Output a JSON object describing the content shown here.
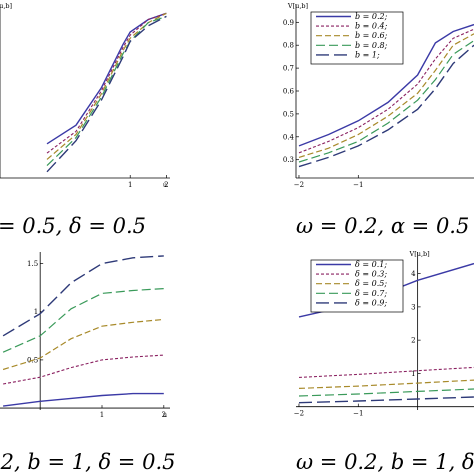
{
  "captions": [
    "= 0.5, δ = 0.5",
    "ω = 0.2, α = 0.5",
    ".2, b = 1, δ = 0.5",
    "ω = 0.2, b = 1, δ"
  ],
  "colors": {
    "s1": "#3b3aa6",
    "s2": "#8a2060",
    "s3": "#a88a2a",
    "s4": "#3a9a5a",
    "s5": "#2e3a78"
  },
  "chart_data": [
    {
      "type": "line",
      "ylabel": "V[u,b]",
      "xlabel": "u",
      "xlim": [
        -2.6,
        2.1
      ],
      "ylim": [
        0.36,
        0.92
      ],
      "xticks": [
        1,
        2
      ],
      "yticks": [],
      "legend": null,
      "series": [
        {
          "x": [
            -1.3,
            -0.5,
            0.2,
            0.8,
            1.0,
            1.5,
            2.0
          ],
          "y": [
            0.47,
            0.53,
            0.65,
            0.79,
            0.83,
            0.87,
            0.89
          ]
        },
        {
          "x": [
            -1.3,
            -0.5,
            0.2,
            0.8,
            1.0,
            1.5,
            2.0
          ],
          "y": [
            0.44,
            0.51,
            0.64,
            0.78,
            0.82,
            0.87,
            0.89
          ]
        },
        {
          "x": [
            -1.3,
            -0.5,
            0.2,
            0.8,
            1.0,
            1.5,
            2.0
          ],
          "y": [
            0.42,
            0.5,
            0.63,
            0.77,
            0.81,
            0.86,
            0.89
          ]
        },
        {
          "x": [
            -1.3,
            -0.5,
            0.2,
            0.8,
            1.0,
            1.5,
            2.0
          ],
          "y": [
            0.4,
            0.49,
            0.62,
            0.76,
            0.8,
            0.86,
            0.88
          ]
        },
        {
          "x": [
            -1.3,
            -0.5,
            0.2,
            0.8,
            1.0,
            1.5,
            2.0
          ],
          "y": [
            0.38,
            0.48,
            0.61,
            0.75,
            0.8,
            0.85,
            0.88
          ]
        }
      ]
    },
    {
      "type": "line",
      "ylabel": "V[u,b]",
      "xlabel": "",
      "xlim": [
        -2.05,
        0.95
      ],
      "ylim": [
        0.22,
        0.98
      ],
      "xticks": [
        -2,
        -1
      ],
      "xtick_labels": [
        "−2",
        "−1"
      ],
      "yticks": [
        0.3,
        0.4,
        0.5,
        0.6,
        0.7,
        0.8,
        0.9
      ],
      "legend": [
        "b = 0.2;",
        "b = 0.4;",
        "b = 0.6;",
        "b = 0.8;",
        "b = 1;"
      ],
      "series": [
        {
          "name": "b = 0.2;",
          "x": [
            -2,
            -1.5,
            -1,
            -0.5,
            0,
            0.3,
            0.6,
            0.95
          ],
          "y": [
            0.36,
            0.41,
            0.47,
            0.55,
            0.67,
            0.81,
            0.86,
            0.89
          ]
        },
        {
          "name": "b = 0.4;",
          "x": [
            -2,
            -1.5,
            -1,
            -0.5,
            0,
            0.3,
            0.6,
            0.95
          ],
          "y": [
            0.33,
            0.38,
            0.44,
            0.52,
            0.63,
            0.74,
            0.83,
            0.87
          ]
        },
        {
          "name": "b = 0.6;",
          "x": [
            -2,
            -1.5,
            -1,
            -0.5,
            0,
            0.3,
            0.6,
            0.95
          ],
          "y": [
            0.31,
            0.35,
            0.41,
            0.49,
            0.59,
            0.69,
            0.8,
            0.85
          ]
        },
        {
          "name": "b = 0.8;",
          "x": [
            -2,
            -1.5,
            -1,
            -0.5,
            0,
            0.3,
            0.6,
            0.95
          ],
          "y": [
            0.29,
            0.33,
            0.38,
            0.46,
            0.56,
            0.65,
            0.76,
            0.82
          ]
        },
        {
          "name": "b = 1;",
          "x": [
            -2,
            -1.5,
            -1,
            -0.5,
            0,
            0.3,
            0.6,
            0.95
          ],
          "y": [
            0.27,
            0.31,
            0.36,
            0.43,
            0.52,
            0.61,
            0.72,
            0.8
          ]
        }
      ]
    },
    {
      "type": "line",
      "ylabel": "",
      "xlabel": "u",
      "xlim": [
        -0.65,
        2.1
      ],
      "ylim": [
        -0.02,
        1.62
      ],
      "xticks": [
        1,
        2
      ],
      "yticks": [
        0.5,
        1.0,
        1.5
      ],
      "legend": null,
      "series": [
        {
          "x": [
            -0.6,
            0,
            0.5,
            1,
            1.5,
            2
          ],
          "y": [
            0.02,
            0.07,
            0.1,
            0.13,
            0.15,
            0.15
          ]
        },
        {
          "x": [
            -0.6,
            0,
            0.5,
            1,
            1.5,
            2
          ],
          "y": [
            0.25,
            0.32,
            0.42,
            0.5,
            0.53,
            0.55
          ]
        },
        {
          "x": [
            -0.6,
            0,
            0.5,
            1,
            1.5,
            2
          ],
          "y": [
            0.4,
            0.52,
            0.72,
            0.85,
            0.89,
            0.92
          ]
        },
        {
          "x": [
            -0.6,
            0,
            0.5,
            1,
            1.5,
            2
          ],
          "y": [
            0.58,
            0.75,
            1.03,
            1.19,
            1.22,
            1.24
          ]
        },
        {
          "x": [
            -0.6,
            0,
            0.5,
            1,
            1.5,
            2
          ],
          "y": [
            0.75,
            0.98,
            1.3,
            1.5,
            1.56,
            1.58
          ]
        }
      ]
    },
    {
      "type": "line",
      "ylabel": "V[u,b]",
      "xlabel": "",
      "xlim": [
        -2.05,
        0.95
      ],
      "ylim": [
        -0.1,
        4.65
      ],
      "xticks": [
        -2,
        -1
      ],
      "xtick_labels": [
        "−2",
        "−1"
      ],
      "yticks": [
        1,
        2,
        3,
        4
      ],
      "legend": [
        "δ = 0.1;",
        "δ = 0.3;",
        "δ = 0.5;",
        "δ = 0.7;",
        "δ = 0.9;"
      ],
      "series": [
        {
          "name": "δ = 0.1;",
          "x": [
            -2,
            -1,
            0,
            0.95
          ],
          "y": [
            2.7,
            3.1,
            3.8,
            4.3
          ]
        },
        {
          "name": "δ = 0.3;",
          "x": [
            -2,
            -1,
            0,
            0.95
          ],
          "y": [
            0.88,
            0.97,
            1.08,
            1.18
          ]
        },
        {
          "name": "δ = 0.5;",
          "x": [
            -2,
            -1,
            0,
            0.95
          ],
          "y": [
            0.55,
            0.62,
            0.71,
            0.8
          ]
        },
        {
          "name": "δ = 0.7;",
          "x": [
            -2,
            -1,
            0,
            0.95
          ],
          "y": [
            0.32,
            0.38,
            0.46,
            0.53
          ]
        },
        {
          "name": "δ = 0.9;",
          "x": [
            -2,
            -1,
            0,
            0.95
          ],
          "y": [
            0.12,
            0.17,
            0.23,
            0.29
          ]
        }
      ]
    }
  ]
}
